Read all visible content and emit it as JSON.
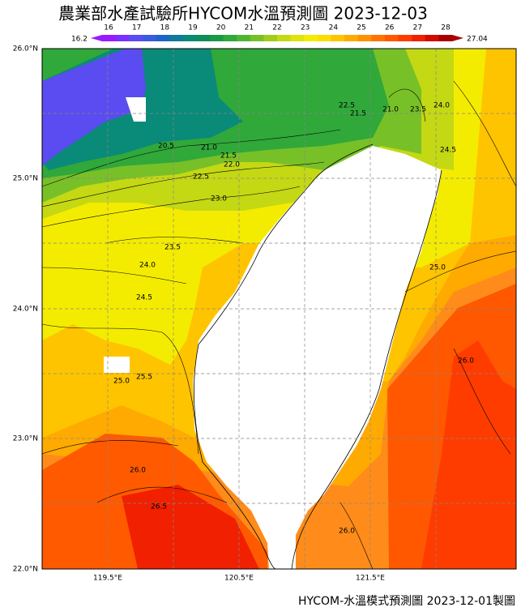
{
  "header": {
    "title": "農業部水產試驗所HYCOM水溫預測圖 2023-12-03"
  },
  "colorbar": {
    "min_label": "16.2",
    "max_label": "27.04",
    "tick_labels": [
      "16",
      "17",
      "18",
      "19",
      "20",
      "21",
      "22",
      "23",
      "24",
      "25",
      "26",
      "27",
      "28"
    ],
    "colors": [
      "#9a1aff",
      "#7a30ff",
      "#5a4cf0",
      "#3a5ae0",
      "#1e64c8",
      "#107a9a",
      "#0a8a78",
      "#108c5a",
      "#1a9a44",
      "#30a83a",
      "#50b432",
      "#78c028",
      "#a0cc1e",
      "#c4d814",
      "#e0e40a",
      "#f4ec00",
      "#ffdc00",
      "#ffc400",
      "#ffaa00",
      "#ff9000",
      "#ff7400",
      "#ff5800",
      "#ff3c00",
      "#f02000",
      "#d00c00",
      "#a80000"
    ]
  },
  "axes": {
    "lat_labels": [
      "26.0°N",
      "25.0°N",
      "24.0°N",
      "23.0°N",
      "22.0°N"
    ],
    "lon_labels": [
      "119.5°E",
      "120.5°E",
      "121.5°E"
    ]
  },
  "contour_labels": [
    "20.5",
    "21.0",
    "21.5",
    "22.0",
    "22.5",
    "23.0",
    "23.5",
    "24.0",
    "24.5",
    "25.0",
    "25.5",
    "26.0",
    "26.5",
    "22.5",
    "21.0",
    "21.5",
    "23.5",
    "24.0",
    "24.5",
    "25.0",
    "26.0",
    "26.0"
  ],
  "footer": {
    "text": "HYCOM-水溫模式預測圖 2023-12-01製圖"
  }
}
